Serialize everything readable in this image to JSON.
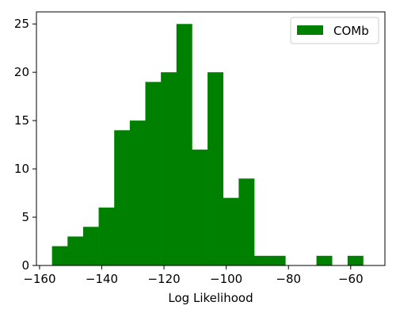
{
  "chart_data": {
    "type": "bar",
    "subtype": "histogram",
    "title": "",
    "xlabel": "Log Likelihood",
    "ylabel": "",
    "xlim": [
      -161,
      -49
    ],
    "ylim": [
      0,
      26.25
    ],
    "bin_edges": [
      -156,
      -151,
      -146,
      -141,
      -136,
      -131,
      -126,
      -121,
      -116,
      -111,
      -106,
      -101,
      -96,
      -91,
      -86,
      -81,
      -76,
      -71,
      -66,
      -61,
      -56
    ],
    "values": [
      2,
      3,
      4,
      6,
      14,
      15,
      19,
      20,
      25,
      12,
      20,
      7,
      9,
      1,
      1,
      0,
      0,
      1,
      0,
      1
    ],
    "xticks": [
      -160,
      -140,
      -120,
      -100,
      -80,
      -60
    ],
    "xtick_labels": [
      "−160",
      "−140",
      "−120",
      "−100",
      "−80",
      "−60"
    ],
    "yticks": [
      0,
      5,
      10,
      15,
      20,
      25
    ],
    "ytick_labels": [
      "0",
      "5",
      "10",
      "15",
      "20",
      "25"
    ],
    "grid": false,
    "legend": {
      "position": "top-right",
      "entries": [
        {
          "label": "COMb",
          "color": "#008000"
        }
      ]
    },
    "series": [
      {
        "name": "COMb",
        "color": "#008000"
      }
    ]
  }
}
